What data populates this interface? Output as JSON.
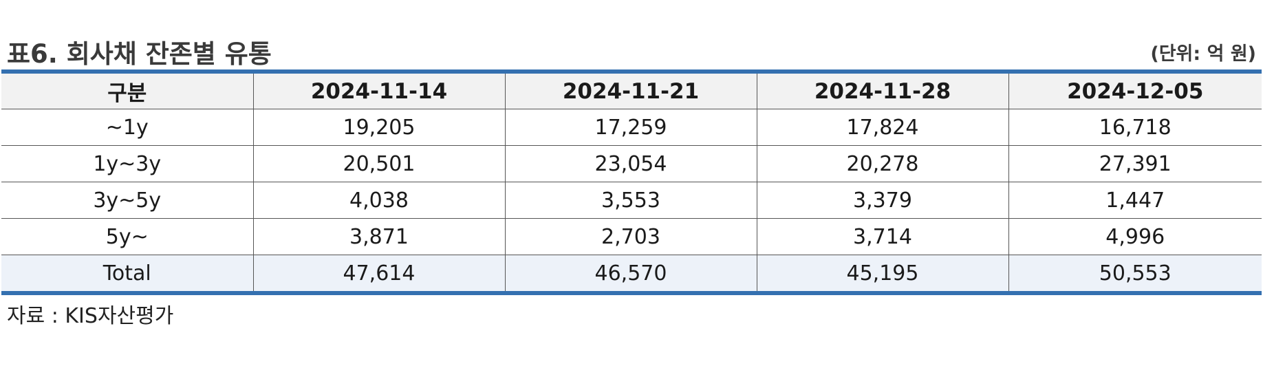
{
  "title": "표6. 회사채 잔존별 유통",
  "unit": "(단위: 억 원)",
  "table": {
    "headers": [
      "구분",
      "2024-11-14",
      "2024-11-21",
      "2024-11-28",
      "2024-12-05"
    ],
    "rows": [
      [
        "~1y",
        "19,205",
        "17,259",
        "17,824",
        "16,718"
      ],
      [
        "1y~3y",
        "20,501",
        "23,054",
        "20,278",
        "27,391"
      ],
      [
        "3y~5y",
        "4,038",
        "3,553",
        "3,379",
        "1,447"
      ],
      [
        "5y~",
        "3,871",
        "2,703",
        "3,714",
        "4,996"
      ],
      [
        "Total",
        "47,614",
        "46,570",
        "45,195",
        "50,553"
      ]
    ]
  },
  "source": "자료 : KIS자산평가",
  "colors": {
    "accent_border": "#3470b0",
    "header_bg": "#f2f2f2",
    "total_bg": "#edf2f9"
  }
}
